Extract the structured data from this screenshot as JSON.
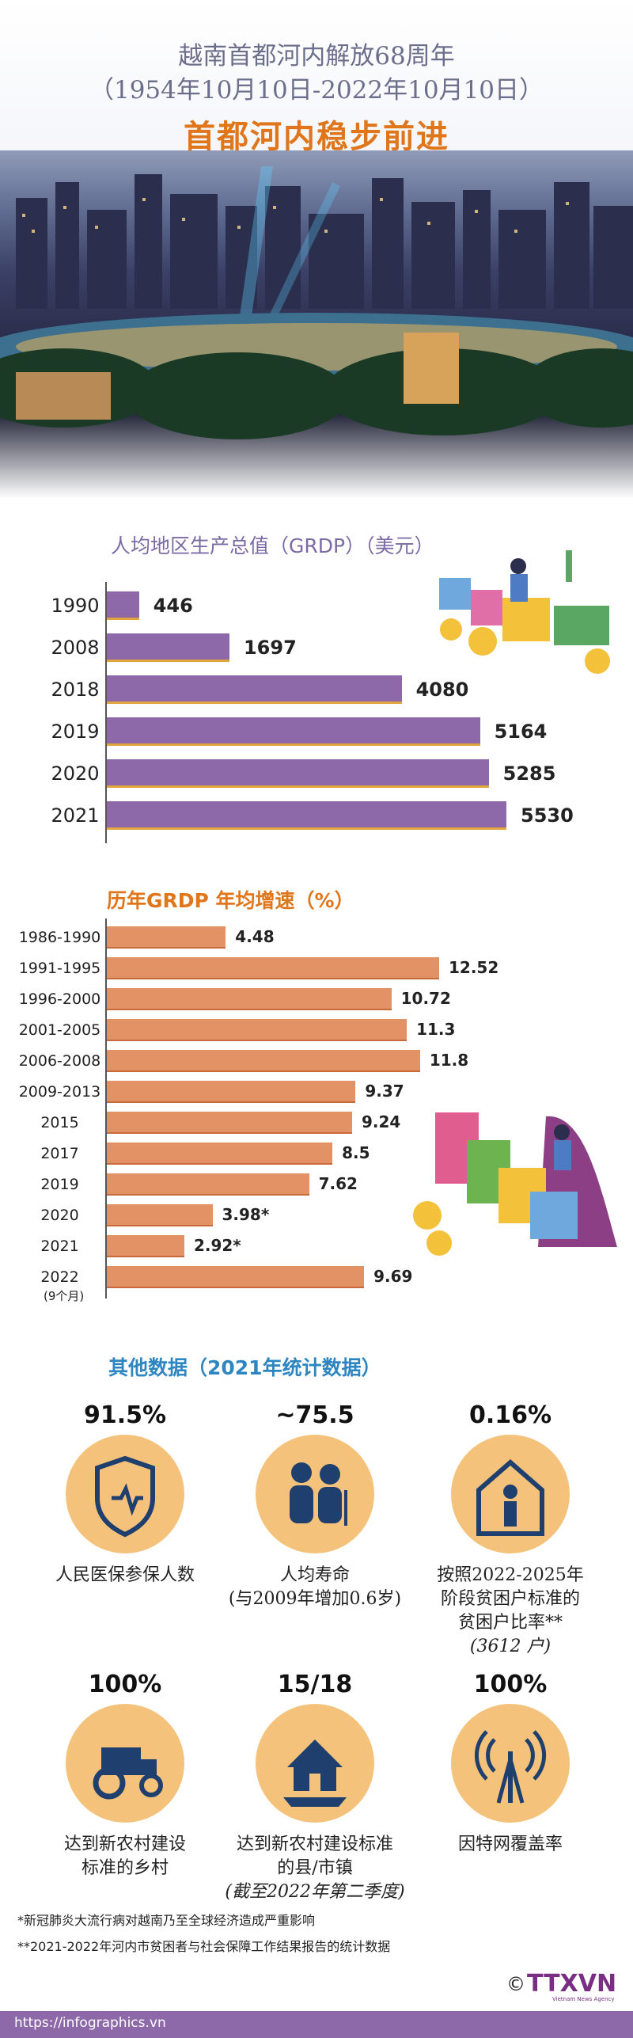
{
  "header": {
    "line1": "越南首都河内解放68周年",
    "line2": "（1954年10月10日-2022年10月10日）",
    "title": "首都河内稳步前进"
  },
  "chart_data": [
    {
      "type": "bar",
      "title": "人均地区生产总值（GRDP）（美元）",
      "categories": [
        "1990",
        "2008",
        "2018",
        "2019",
        "2020",
        "2021"
      ],
      "values": [
        446,
        1697,
        4080,
        5164,
        5285,
        5530
      ],
      "value_labels": [
        "446",
        "1697",
        "4080",
        "5164",
        "5285",
        "5530"
      ],
      "orientation": "horizontal",
      "colors": {
        "bar": "#8d69a9",
        "underline": "#e0a53c"
      }
    },
    {
      "type": "bar",
      "title": "历年GRDP 年均增速（%）",
      "categories": [
        "1986-1990",
        "1991-1995",
        "1996-2000",
        "2001-2005",
        "2006-2008",
        "2009-2013",
        "2015",
        "2017",
        "2019",
        "2020",
        "2021",
        "2022"
      ],
      "values": [
        4.48,
        12.52,
        10.72,
        11.3,
        11.8,
        9.37,
        9.24,
        8.5,
        7.62,
        3.98,
        2.92,
        9.69
      ],
      "value_labels": [
        "4.48",
        "12.52",
        "10.72",
        "11.3",
        "11.8",
        "9.37",
        "9.24",
        "8.5",
        "7.62",
        "3.98*",
        "2.92*",
        "9.69"
      ],
      "note_2022": "(9个月)",
      "orientation": "horizontal",
      "colors": {
        "bar": "#e39266"
      }
    }
  ],
  "other": {
    "title": "其他数据（2021年统计数据）",
    "stats": [
      {
        "value": "91.5%",
        "caption": [
          "人民医保参保人数"
        ],
        "icon": "health-shield-icon"
      },
      {
        "value": "~75.5",
        "caption": [
          "人均寿命",
          "(与2009年增加0.6岁)"
        ],
        "icon": "elderly-couple-icon"
      },
      {
        "value": "0.16%",
        "caption": [
          "按照2022-2025年",
          "阶段贫困户标准的",
          "贫困户比率**"
        ],
        "italic": "(3612 户)",
        "icon": "poor-house-icon"
      },
      {
        "value": "100%",
        "caption": [
          "达到新农村建设",
          "标准的乡村"
        ],
        "icon": "tractor-icon"
      },
      {
        "value": "15/18",
        "caption": [
          "达到新农村建设标准",
          "的县/市镇"
        ],
        "italic": "(截至2022年第二季度)",
        "icon": "farm-icon"
      },
      {
        "value": "100%",
        "caption": [
          "因特网覆盖率"
        ],
        "icon": "antenna-icon"
      }
    ]
  },
  "footnotes": [
    "*新冠肺炎大流行病对越南乃至全球经济造成严重影响",
    "**2021-2022年河内市贫困者与社会保障工作结果报告的统计数据"
  ],
  "footer": {
    "url": "https://infographics.vn",
    "logo_text": "TTXVN",
    "logo_sub": "Vietnam News Agency",
    "copyright": "©"
  }
}
